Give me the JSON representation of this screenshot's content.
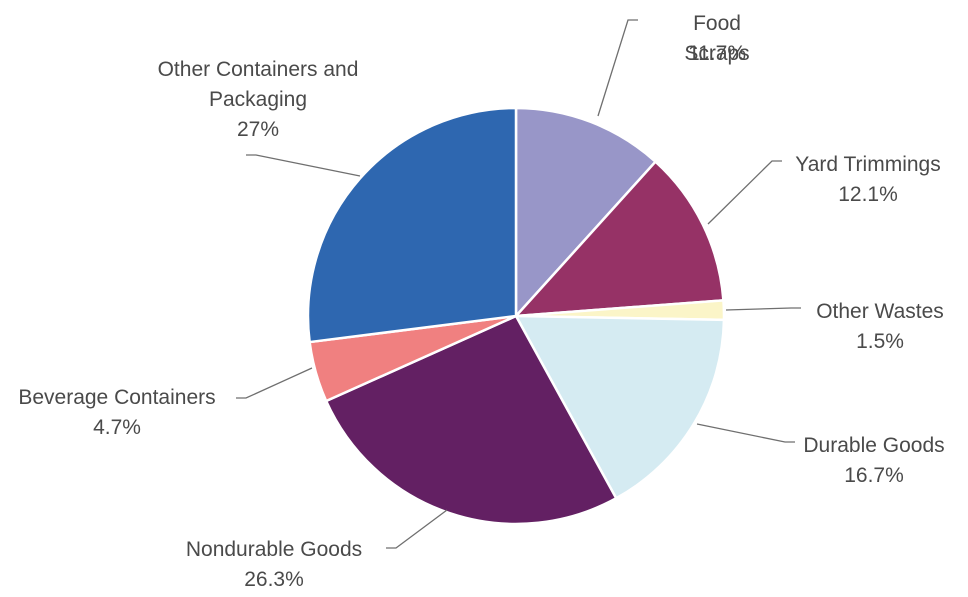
{
  "chart_data": {
    "type": "pie",
    "title": "",
    "start_angle_deg": 0,
    "direction": "clockwise",
    "slices": [
      {
        "label": "Food Scraps",
        "value_label": "11.7%",
        "value": 11.7,
        "color": "#9896c8"
      },
      {
        "label": "Yard Trimmings",
        "value_label": "12.1%",
        "value": 12.1,
        "color": "#963266"
      },
      {
        "label": "Other Wastes",
        "value_label": "1.5%",
        "value": 1.5,
        "color": "#fbf5c8"
      },
      {
        "label": "Durable Goods",
        "value_label": "16.7%",
        "value": 16.7,
        "color": "#d5ebf2"
      },
      {
        "label": "Nondurable Goods",
        "value_label": "26.3%",
        "value": 26.3,
        "color": "#632063"
      },
      {
        "label": "Beverage Containers",
        "value_label": "4.7%",
        "value": 4.7,
        "color": "#f08080"
      },
      {
        "label": "Other Containers and Packaging",
        "value_label": "27%",
        "value": 27,
        "color": "#2e67b0"
      }
    ]
  }
}
